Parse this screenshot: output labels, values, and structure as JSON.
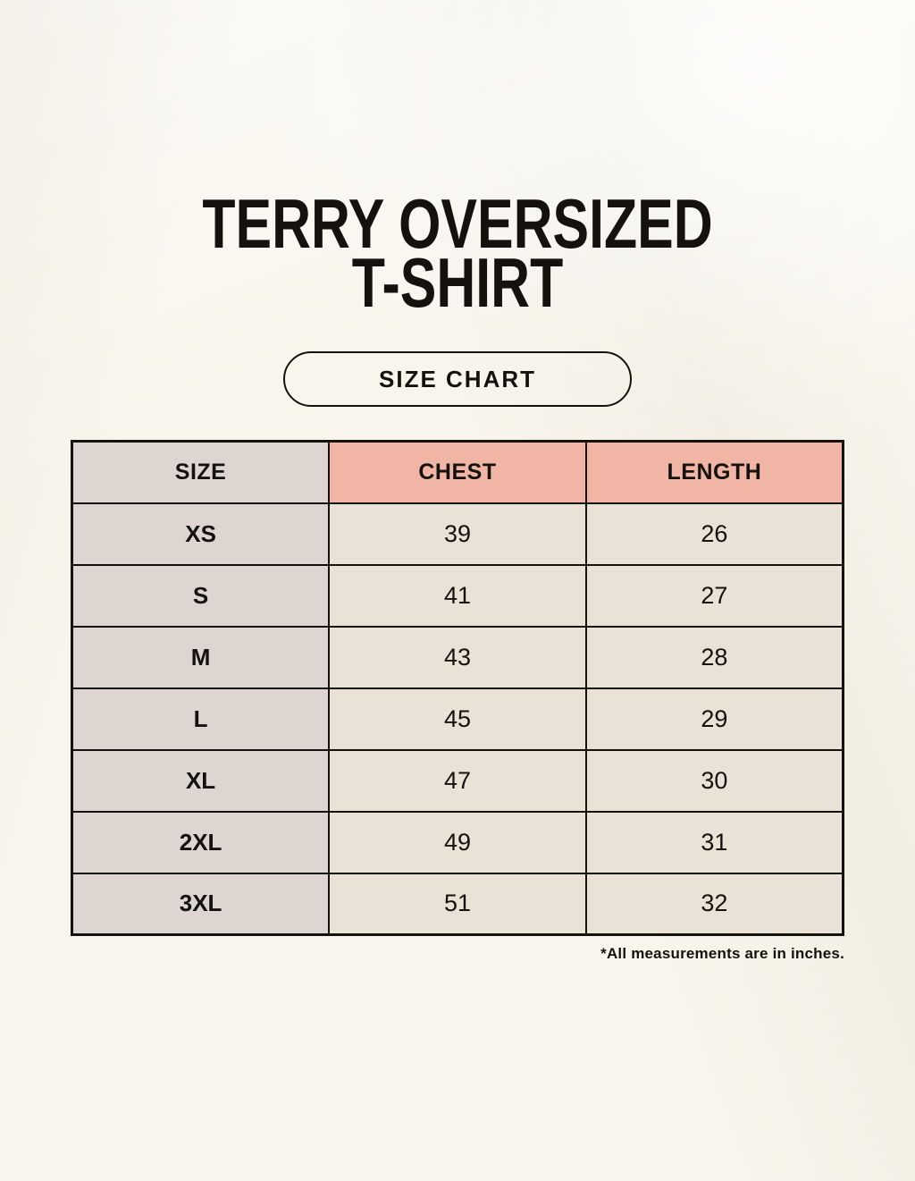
{
  "page": {
    "title_line1": "TERRY OVERSIZED",
    "title_line2": "T-SHIRT",
    "badge_label": "SIZE CHART",
    "footnote": "*All measurements are in inches."
  },
  "colors": {
    "background": "#f8f5ec",
    "size_column_bg": "#ddd6d0",
    "header_accent_bg": "#f0b5a4",
    "data_cell_bg": "#e9e2d6",
    "border": "#15120e",
    "text": "#15120e"
  },
  "chart_data": {
    "type": "table",
    "title": "TERRY OVERSIZED T-SHIRT SIZE CHART",
    "units": "inches",
    "columns": [
      "SIZE",
      "CHEST",
      "LENGTH"
    ],
    "rows": [
      {
        "size": "XS",
        "chest": 39,
        "length": 26
      },
      {
        "size": "S",
        "chest": 41,
        "length": 27
      },
      {
        "size": "M",
        "chest": 43,
        "length": 28
      },
      {
        "size": "L",
        "chest": 45,
        "length": 29
      },
      {
        "size": "XL",
        "chest": 47,
        "length": 30
      },
      {
        "size": "2XL",
        "chest": 49,
        "length": 31
      },
      {
        "size": "3XL",
        "chest": 51,
        "length": 32
      }
    ]
  }
}
